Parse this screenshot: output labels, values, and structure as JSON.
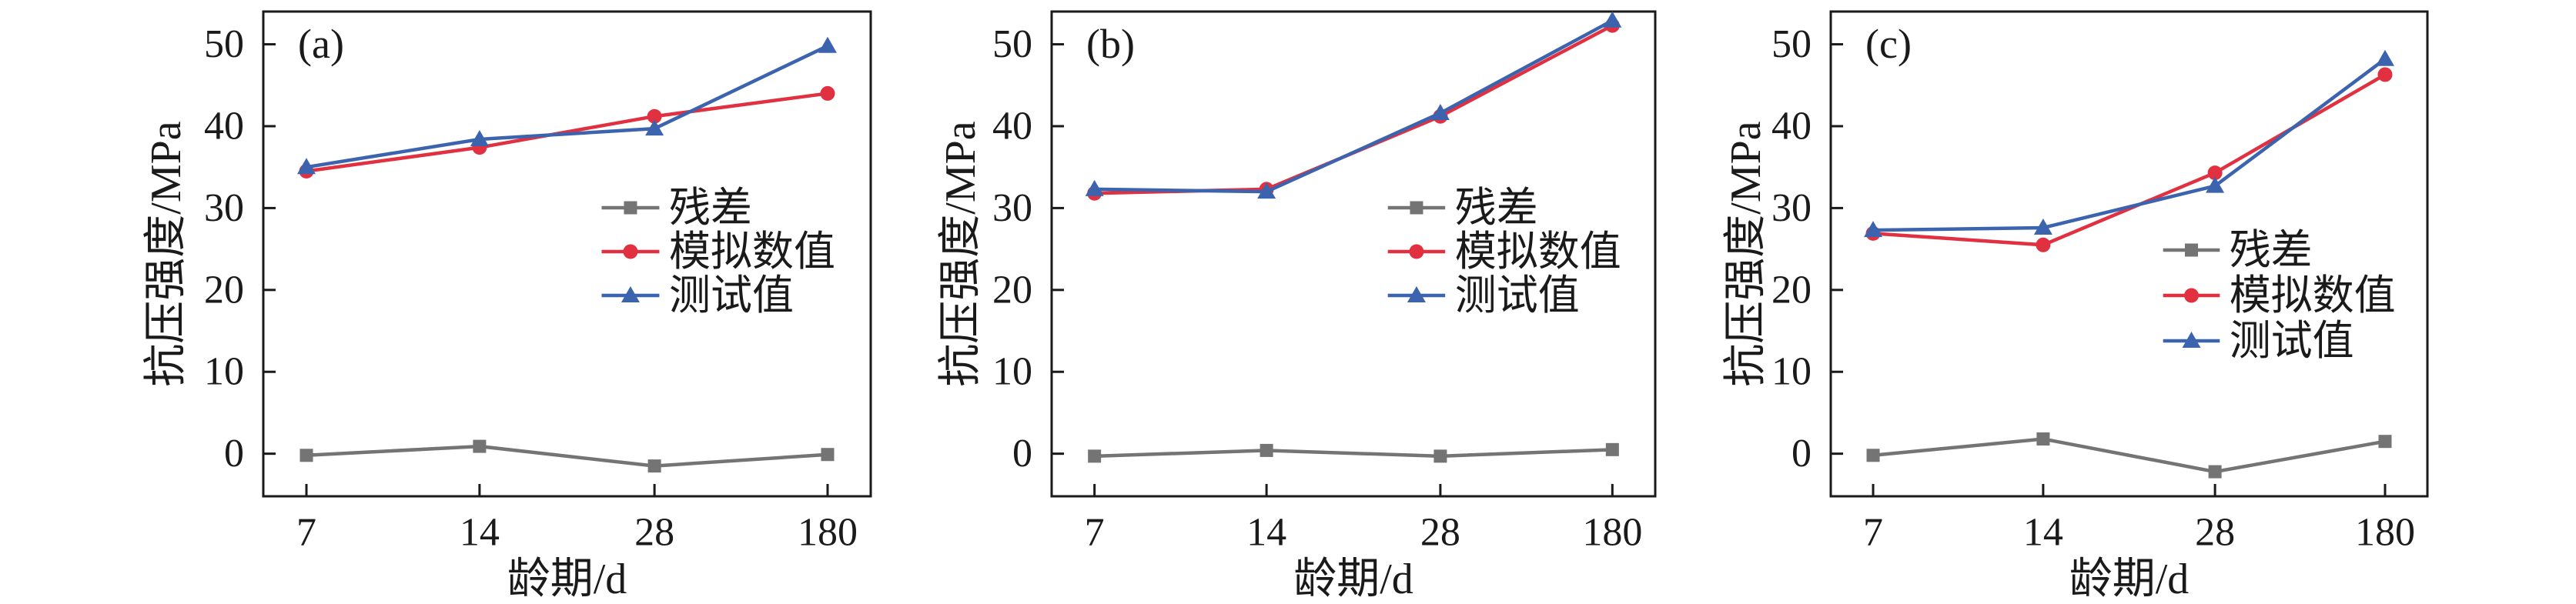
{
  "figure": {
    "background": "#ffffff",
    "frame_color": "#1a1a1a",
    "text_color": "#1a1a1a"
  },
  "chart_data": [
    {
      "type": "line",
      "panel_label": "(a)",
      "xlabel": "龄期/d",
      "ylabel": "抗压强度/MPa",
      "categories": [
        "7",
        "14",
        "28",
        "180"
      ],
      "ylim": [
        -5.2,
        54
      ],
      "yticks": [
        0,
        10,
        20,
        30,
        40,
        50
      ],
      "grid": false,
      "legend_position": "center-right",
      "series": [
        {
          "id": "residual",
          "name": "残差",
          "marker": "square",
          "color": "#747474",
          "values": [
            -0.2,
            0.9,
            -1.5,
            -0.1
          ]
        },
        {
          "id": "simulated",
          "name": "模拟数值",
          "marker": "circle",
          "color": "#e13040",
          "values": [
            34.5,
            37.4,
            41.2,
            44.0
          ]
        },
        {
          "id": "test",
          "name": "测试值",
          "marker": "triangle",
          "color": "#3c64ae",
          "values": [
            35.0,
            38.4,
            39.7,
            49.8
          ]
        }
      ]
    },
    {
      "type": "line",
      "panel_label": "(b)",
      "xlabel": "龄期/d",
      "ylabel": "抗压强度/MPa",
      "categories": [
        "7",
        "14",
        "28",
        "180"
      ],
      "ylim": [
        -5.2,
        54
      ],
      "yticks": [
        0,
        10,
        20,
        30,
        40,
        50
      ],
      "grid": false,
      "legend_position": "center-right",
      "series": [
        {
          "id": "residual",
          "name": "残差",
          "marker": "square",
          "color": "#747474",
          "values": [
            -0.3,
            0.4,
            -0.3,
            0.5
          ]
        },
        {
          "id": "simulated",
          "name": "模拟数值",
          "marker": "circle",
          "color": "#e13040",
          "values": [
            31.8,
            32.3,
            41.2,
            52.3
          ]
        },
        {
          "id": "test",
          "name": "测试值",
          "marker": "triangle",
          "color": "#3c64ae",
          "values": [
            32.3,
            32.0,
            41.6,
            52.9
          ]
        }
      ]
    },
    {
      "type": "line",
      "panel_label": "(c)",
      "xlabel": "龄期/d",
      "ylabel": "抗压强度/MPa",
      "categories": [
        "7",
        "14",
        "28",
        "180"
      ],
      "ylim": [
        -5.2,
        54
      ],
      "yticks": [
        0,
        10,
        20,
        30,
        40,
        50
      ],
      "grid": false,
      "legend_position": "center-right",
      "series": [
        {
          "id": "residual",
          "name": "残差",
          "marker": "square",
          "color": "#747474",
          "values": [
            -0.2,
            1.8,
            -2.2,
            1.5
          ]
        },
        {
          "id": "simulated",
          "name": "模拟数值",
          "marker": "circle",
          "color": "#e13040",
          "values": [
            26.9,
            25.5,
            34.3,
            46.3
          ]
        },
        {
          "id": "test",
          "name": "测试值",
          "marker": "triangle",
          "color": "#3c64ae",
          "values": [
            27.3,
            27.6,
            32.7,
            48.2
          ]
        }
      ]
    }
  ]
}
